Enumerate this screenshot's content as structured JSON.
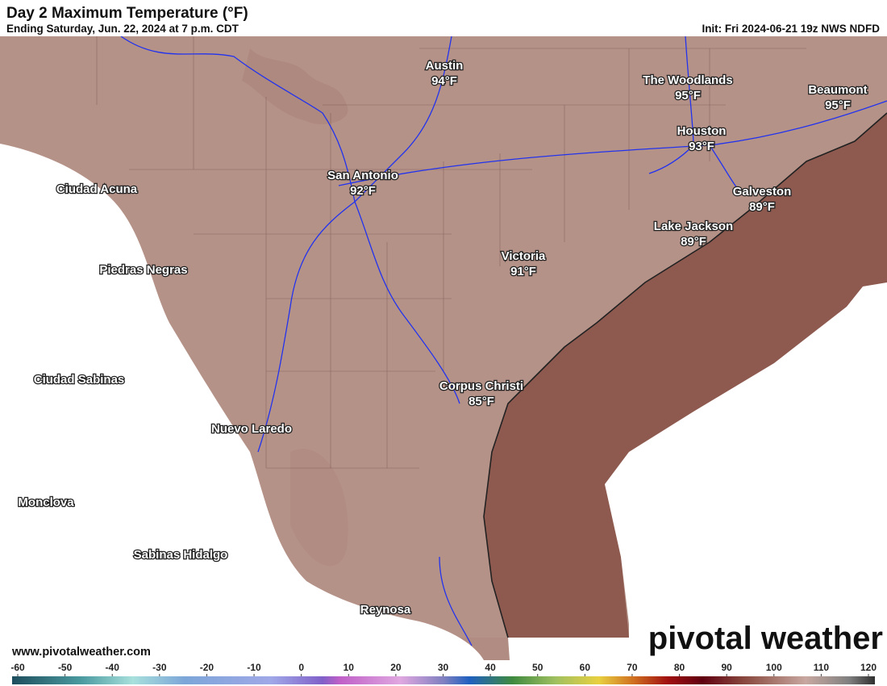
{
  "header": {
    "title": "Day 2 Maximum Temperature (°F)",
    "subtitle": "Ending Saturday, Jun. 22, 2024 at 7 p.m. CDT",
    "init": "Init: Fri 2024-06-21 19z NWS NDFD"
  },
  "cities": {
    "names": [
      "Austin",
      "The Woodlands",
      "Beaumont",
      "Houston",
      "San Antonio",
      "Galveston",
      "Lake Jackson",
      "Victoria",
      "Corpus Christi"
    ],
    "values": [
      94,
      95,
      95,
      93,
      92,
      89,
      89,
      91,
      85
    ],
    "value_labels": [
      "94°F",
      "95°F",
      "95°F",
      "93°F",
      "92°F",
      "89°F",
      "89°F",
      "91°F",
      "85°F"
    ]
  },
  "places": [
    "Ciudad Acuna",
    "Piedras Negras",
    "Ciudad Sabinas",
    "Nuevo Laredo",
    "Monclova",
    "Sabinas Hidalgo",
    "Reynosa"
  ],
  "footer": {
    "url": "www.pivotalweather.com",
    "logo": "pivotal weather"
  },
  "colorbar": {
    "range": [
      -60,
      120
    ],
    "ticks": [
      -60,
      -50,
      -40,
      -30,
      -20,
      -10,
      0,
      10,
      20,
      30,
      40,
      50,
      60,
      70,
      80,
      90,
      100,
      110,
      120
    ]
  }
}
